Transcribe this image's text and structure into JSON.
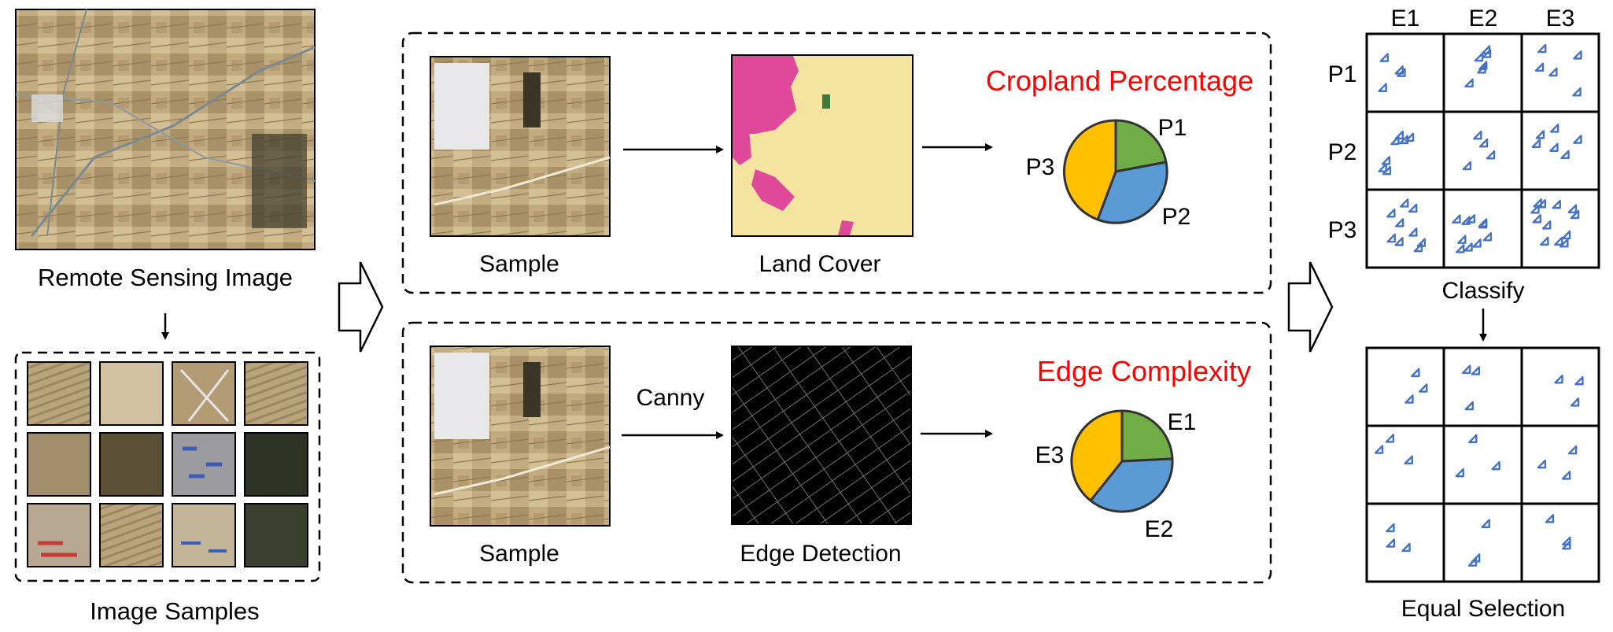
{
  "left": {
    "remote_sensing_label": "Remote Sensing Image",
    "image_samples_label": "Image Samples"
  },
  "top_panel": {
    "sample_label": "Sample",
    "land_cover_label": "Land Cover",
    "title": "Cropland Percentage",
    "pie_labels": [
      "P1",
      "P2",
      "P3"
    ]
  },
  "bottom_panel": {
    "sample_label": "Sample",
    "canny_label": "Canny",
    "edge_detection_label": "Edge Detection",
    "title": "Edge Complexity",
    "pie_labels": [
      "E1",
      "E2",
      "E3"
    ]
  },
  "right": {
    "col_headers": [
      "E1",
      "E2",
      "E3"
    ],
    "row_headers": [
      "P1",
      "P2",
      "P3"
    ],
    "classify_label": "Classify",
    "equal_selection_label": "Equal Selection"
  },
  "colors": {
    "accent_red": "#ff0000",
    "pie_green": "#70ad47",
    "pie_blue": "#5b9bd5",
    "pie_orange": "#ffc000",
    "triangle_blue": "#4472c4",
    "cropland_pink": "#e0489a",
    "background_beige": "#f5e3a0"
  }
}
